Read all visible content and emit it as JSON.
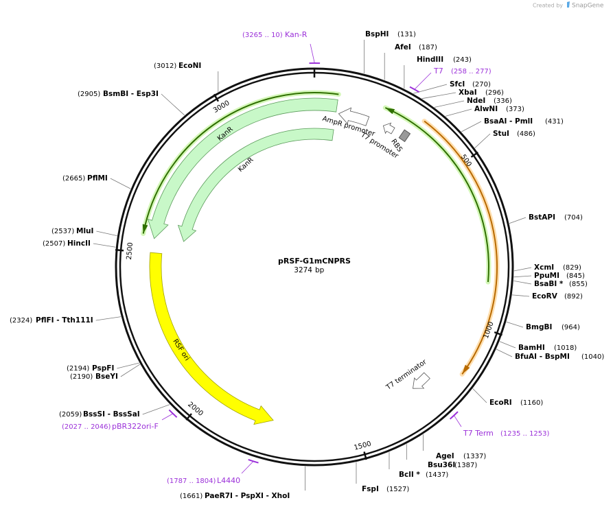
{
  "header": {
    "credit": "Created by",
    "brand": "SnapGene"
  },
  "plasmid": {
    "name": "pRSF-G1mCNPRS",
    "length": 3274,
    "unit": "bp"
  },
  "ruler": {
    "ticks": [
      500,
      1000,
      1500,
      2000,
      2500,
      3000
    ]
  },
  "sites": [
    {
      "name": "BspHI",
      "position": {
        "value": 131,
        "label": "(131)"
      }
    },
    {
      "name": "AfeI",
      "position": {
        "value": 187,
        "label": "(187)"
      }
    },
    {
      "name": "HindIII",
      "position": {
        "value": 243,
        "label": "(243)"
      }
    },
    {
      "name": "SfcI",
      "position": {
        "value": 270,
        "label": "(270)"
      }
    },
    {
      "name": "XbaI",
      "position": {
        "value": 296,
        "label": "(296)"
      }
    },
    {
      "name": "NdeI",
      "position": {
        "value": 336,
        "label": "(336)"
      }
    },
    {
      "name": "AlwNI",
      "position": {
        "value": 373,
        "label": "(373)"
      }
    },
    {
      "name": "BsaAI - PmlI",
      "position": {
        "value": 431,
        "label": "(431)"
      }
    },
    {
      "name": "StuI",
      "position": {
        "value": 486,
        "label": "(486)"
      }
    },
    {
      "name": "BstAPI",
      "position": {
        "value": 704,
        "label": "(704)"
      }
    },
    {
      "name": "XcmI",
      "position": {
        "value": 829,
        "label": "(829)"
      }
    },
    {
      "name": "PpuMI",
      "position": {
        "value": 845,
        "label": "(845)"
      }
    },
    {
      "name": "BsaBI *",
      "position": {
        "value": 855,
        "label": "(855)"
      }
    },
    {
      "name": "EcoRV",
      "position": {
        "value": 892,
        "label": "(892)"
      }
    },
    {
      "name": "BmgBI",
      "position": {
        "value": 964,
        "label": "(964)"
      }
    },
    {
      "name": "BamHI",
      "position": {
        "value": 1018,
        "label": "(1018)"
      }
    },
    {
      "name": "BfuAI - BspMI",
      "position": {
        "value": 1040,
        "label": "(1040)"
      }
    },
    {
      "name": "EcoRI",
      "position": {
        "value": 1160,
        "label": "(1160)"
      }
    },
    {
      "name": "AgeI",
      "position": {
        "value": 1337,
        "label": "(1337)"
      }
    },
    {
      "name": "Bsu36I",
      "position": {
        "value": 1387,
        "label": "(1387)"
      }
    },
    {
      "name": "BclI *",
      "position": {
        "value": 1437,
        "label": "(1437)"
      }
    },
    {
      "name": "FspI",
      "position": {
        "value": 1527,
        "label": "(1527)"
      }
    },
    {
      "name": "PaeR7I - PspXI - XhoI",
      "position": {
        "value": 1661,
        "label": "(1661)"
      }
    },
    {
      "name": "BssSI - BssSaI",
      "position": {
        "value": 2059,
        "label": "(2059)"
      }
    },
    {
      "name": "BseYI",
      "position": {
        "value": 2190,
        "label": "(2190)"
      }
    },
    {
      "name": "PspFI",
      "position": {
        "value": 2194,
        "label": "(2194)"
      }
    },
    {
      "name": "PflFI - Tth111I",
      "position": {
        "value": 2324,
        "label": "(2324)"
      }
    },
    {
      "name": "HincII",
      "position": {
        "value": 2507,
        "label": "(2507)"
      }
    },
    {
      "name": "MluI",
      "position": {
        "value": 2537,
        "label": "(2537)"
      }
    },
    {
      "name": "PflMI",
      "position": {
        "value": 2665,
        "label": "(2665)"
      }
    },
    {
      "name": "BsmBI - Esp3I",
      "position": {
        "value": 2905,
        "label": "(2905)"
      }
    },
    {
      "name": "EcoNI",
      "position": {
        "value": 3012,
        "label": "(3012)"
      }
    }
  ],
  "primers": [
    {
      "name": "Kan-R",
      "range": {
        "start": 3265,
        "end": 10,
        "label": "(3265 .. 10)"
      }
    },
    {
      "name": "T7",
      "range": {
        "start": 258,
        "end": 277,
        "label": "(258 .. 277)"
      }
    },
    {
      "name": "T7 Term",
      "range": {
        "start": 1235,
        "end": 1253,
        "label": "(1235 .. 1253)"
      }
    },
    {
      "name": "pBR322ori-F",
      "range": {
        "start": 2027,
        "end": 2046,
        "label": "(2027 .. 2046)"
      }
    },
    {
      "name": "L4440",
      "range": {
        "start": 1787,
        "end": 1804,
        "label": "(1787 .. 1804)"
      }
    }
  ],
  "features": [
    {
      "label": "KanR"
    },
    {
      "label": "KanR"
    },
    {
      "label": "RSF ori"
    },
    {
      "label": "AmpR promoter"
    },
    {
      "label": "T7 promoter"
    },
    {
      "label": "RBS"
    },
    {
      "label": "T7 terminator"
    }
  ]
}
